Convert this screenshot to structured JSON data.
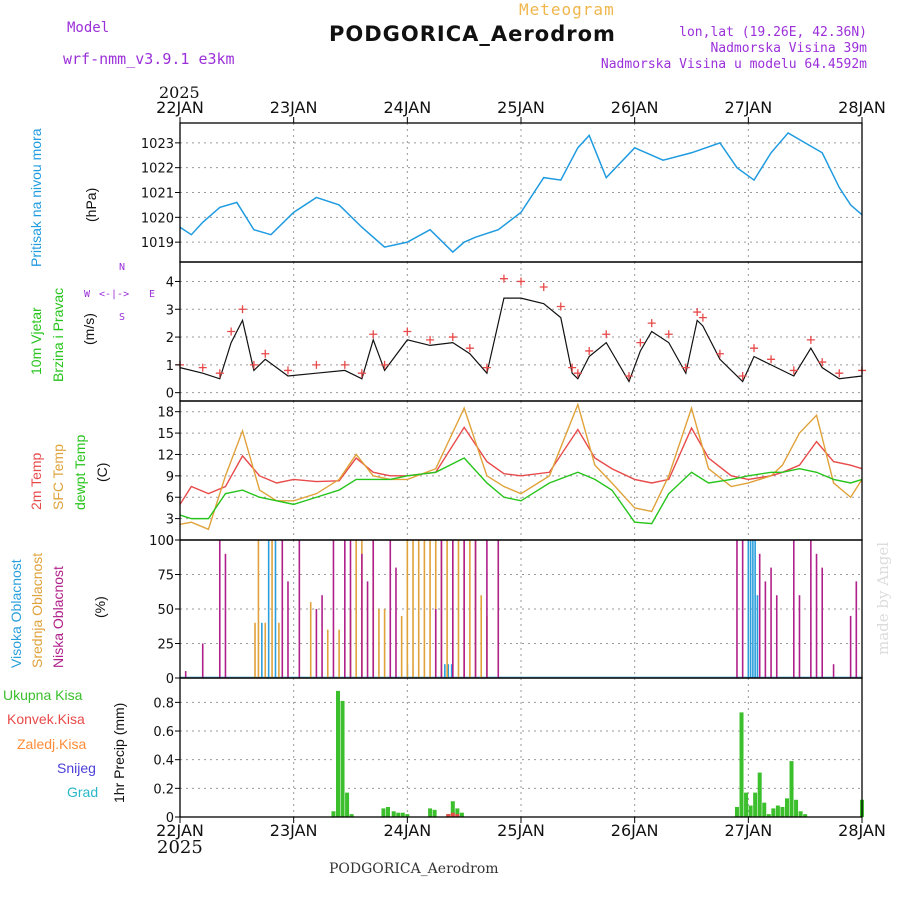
{
  "header": {
    "model_label": "Model",
    "model_name": "wrf-nmm_v3.9.1 e3km",
    "meteogram_label": "Meteogram",
    "title": "PODGORICA_Aerodrom",
    "coords": "lon,lat (19.26E, 42.36N)",
    "elevation": "Nadmorska Visina 39m",
    "model_elevation": "Nadmorska Visina u modelu 64.4592m",
    "year_top": "2025",
    "year_bottom": "2025",
    "footer": "PODGORICA_Aerodrom",
    "watermark": "made by Angel"
  },
  "colors": {
    "pressure": "#1f9be0",
    "wind_speed": "#111111",
    "gust": "#e84a4a",
    "temp2m": "#e84a4a",
    "sfc": "#e0a23a",
    "dewpt": "#27c41c",
    "high_cloud": "#2b9fdc",
    "mid_cloud": "#e0a23a",
    "low_cloud": "#b0208a",
    "total_precip": "#3cbf2c",
    "conv_precip": "#e84a4a",
    "freezing_rain": "#ff8c3a",
    "snow": "#4b3fd9",
    "hail": "#28b8c8",
    "grid": "#9a9a9a"
  },
  "panel_labels": {
    "pressure": [
      "Pritisak na nivou mora"
    ],
    "pressure_unit": "(hPa)",
    "wind": [
      "10m Vjetar",
      "Brzina i Pravac"
    ],
    "wind_unit": "(m/s)",
    "compass": {
      "n": "N",
      "s": "S",
      "w": "W",
      "e": "E",
      "arrows": "<-|->"
    },
    "temp": [
      "2m Temp",
      "SFC Temp",
      "dewpt Temp"
    ],
    "temp_unit": "(C)",
    "cloud": [
      "Visoka Oblacnost",
      "Srednja Oblacnost",
      "Niska Oblacnost"
    ],
    "cloud_unit": "(%)",
    "precip": [
      "Ukupna Kisa",
      "Konvek.Kisa",
      "Zaledj.Kisa",
      "Snijeg",
      "Grad"
    ],
    "precip_unit": "1hr Precip (mm)"
  },
  "chart_data": [
    {
      "type": "line",
      "name": "pressure",
      "title": "Pritisak na nivou mora",
      "ylabel": "(hPa)",
      "categories": [
        "22JAN",
        "23JAN",
        "24JAN",
        "25JAN",
        "26JAN",
        "27JAN",
        "28JAN"
      ],
      "yticks": [
        1019,
        1020,
        1021,
        1022,
        1023
      ],
      "ylim": [
        1018.2,
        1023.8
      ],
      "x": [
        0,
        0.1,
        0.2,
        0.35,
        0.5,
        0.65,
        0.8,
        1.0,
        1.2,
        1.4,
        1.6,
        1.8,
        2.0,
        2.2,
        2.4,
        2.5,
        2.6,
        2.8,
        3.0,
        3.2,
        3.35,
        3.5,
        3.6,
        3.75,
        4.0,
        4.25,
        4.5,
        4.75,
        4.9,
        5.05,
        5.2,
        5.35,
        5.5,
        5.65,
        5.8,
        5.9,
        6.0
      ],
      "values": [
        1019.6,
        1019.3,
        1019.8,
        1020.4,
        1020.6,
        1019.5,
        1019.3,
        1020.2,
        1020.8,
        1020.5,
        1019.6,
        1018.8,
        1019.0,
        1019.5,
        1018.6,
        1019.0,
        1019.2,
        1019.5,
        1020.2,
        1021.6,
        1021.5,
        1022.8,
        1023.3,
        1021.6,
        1022.8,
        1022.3,
        1022.6,
        1023.0,
        1022.0,
        1021.5,
        1022.6,
        1023.4,
        1023.0,
        1022.6,
        1021.2,
        1020.5,
        1020.1
      ]
    },
    {
      "type": "line",
      "name": "wind",
      "title": "10m Vjetar Brzina i Pravac",
      "ylabel": "(m/s)",
      "yticks": [
        0,
        1,
        2,
        3,
        4
      ],
      "ylim": [
        -0.3,
        4.7
      ],
      "series": [
        {
          "name": "speed",
          "x": [
            0,
            0.2,
            0.35,
            0.45,
            0.55,
            0.65,
            0.75,
            0.95,
            1.2,
            1.45,
            1.6,
            1.7,
            1.8,
            2.0,
            2.2,
            2.4,
            2.55,
            2.7,
            2.85,
            3.0,
            3.2,
            3.35,
            3.45,
            3.5,
            3.6,
            3.75,
            3.95,
            4.05,
            4.15,
            4.3,
            4.45,
            4.55,
            4.6,
            4.75,
            4.95,
            5.05,
            5.2,
            5.4,
            5.55,
            5.65,
            5.8,
            6.0
          ],
          "values": [
            0.9,
            0.7,
            0.5,
            1.8,
            2.6,
            0.8,
            1.2,
            0.6,
            0.7,
            0.8,
            0.5,
            1.9,
            0.8,
            1.9,
            1.7,
            1.8,
            1.4,
            0.7,
            3.4,
            3.4,
            3.2,
            2.7,
            0.7,
            0.5,
            1.3,
            1.8,
            0.4,
            1.5,
            2.2,
            1.8,
            0.7,
            2.6,
            2.4,
            1.2,
            0.4,
            1.3,
            1.0,
            0.6,
            1.6,
            0.9,
            0.5,
            0.6
          ]
        },
        {
          "name": "gust",
          "x": [
            0,
            0.2,
            0.35,
            0.45,
            0.55,
            0.65,
            0.75,
            0.95,
            1.2,
            1.45,
            1.6,
            1.7,
            1.8,
            2.0,
            2.2,
            2.4,
            2.55,
            2.7,
            2.85,
            3.0,
            3.2,
            3.35,
            3.45,
            3.5,
            3.6,
            3.75,
            3.95,
            4.05,
            4.15,
            4.3,
            4.45,
            4.55,
            4.6,
            4.75,
            4.95,
            5.05,
            5.2,
            5.4,
            5.55,
            5.65,
            5.8,
            6.0
          ],
          "values": [
            1.0,
            0.9,
            0.7,
            2.2,
            3.0,
            1.0,
            1.4,
            0.8,
            1.0,
            1.0,
            0.7,
            2.1,
            1.0,
            2.2,
            1.9,
            2.0,
            1.6,
            0.9,
            4.1,
            4.0,
            3.8,
            3.1,
            0.9,
            0.7,
            1.5,
            2.1,
            0.6,
            1.8,
            2.5,
            2.1,
            0.9,
            2.9,
            2.7,
            1.4,
            0.6,
            1.6,
            1.2,
            0.8,
            1.9,
            1.1,
            0.7,
            0.8
          ]
        }
      ]
    },
    {
      "type": "line",
      "name": "temperature",
      "title": "2m Temp / SFC Temp / dewpt Temp",
      "ylabel": "(C)",
      "yticks": [
        0,
        3,
        6,
        9,
        12,
        15,
        18
      ],
      "ylim": [
        0,
        19.5
      ],
      "series": [
        {
          "name": "2m Temp",
          "x": [
            0,
            0.1,
            0.25,
            0.4,
            0.55,
            0.7,
            0.85,
            1.0,
            1.2,
            1.4,
            1.55,
            1.7,
            1.85,
            2.0,
            2.25,
            2.5,
            2.7,
            2.85,
            3.0,
            3.25,
            3.5,
            3.65,
            3.8,
            4.0,
            4.15,
            4.3,
            4.5,
            4.65,
            4.85,
            5.0,
            5.2,
            5.3,
            5.45,
            5.6,
            5.75,
            5.9,
            6.0
          ],
          "values": [
            5.0,
            7.5,
            6.5,
            7.5,
            11.8,
            9.0,
            8.0,
            8.5,
            8.2,
            8.3,
            11.5,
            9.5,
            9.0,
            9.0,
            9.5,
            15.8,
            11.0,
            9.3,
            9.0,
            9.5,
            15.5,
            11.5,
            10.0,
            8.5,
            8.0,
            8.5,
            15.7,
            11.5,
            9.0,
            8.5,
            9.0,
            9.5,
            10.5,
            13.8,
            11.0,
            10.5,
            10.0
          ]
        },
        {
          "name": "SFC Temp",
          "x": [
            0,
            0.1,
            0.25,
            0.4,
            0.55,
            0.7,
            0.85,
            1.0,
            1.2,
            1.4,
            1.55,
            1.7,
            1.85,
            2.0,
            2.25,
            2.5,
            2.7,
            2.85,
            3.0,
            3.25,
            3.5,
            3.65,
            3.8,
            4.0,
            4.15,
            4.3,
            4.5,
            4.65,
            4.85,
            5.0,
            5.2,
            5.3,
            5.45,
            5.6,
            5.75,
            5.9,
            6.0
          ],
          "values": [
            2.2,
            2.5,
            1.5,
            9.0,
            15.3,
            7.0,
            5.5,
            5.5,
            6.5,
            8.5,
            12.0,
            9.0,
            8.5,
            8.5,
            10.0,
            18.5,
            9.0,
            7.5,
            6.5,
            9.0,
            19.0,
            10.5,
            8.0,
            4.5,
            4.0,
            9.0,
            18.5,
            10.0,
            7.5,
            8.0,
            9.0,
            10.5,
            15.0,
            17.5,
            8.0,
            6.0,
            8.5
          ]
        },
        {
          "name": "dewpt Temp",
          "x": [
            0,
            0.1,
            0.25,
            0.4,
            0.55,
            0.7,
            0.85,
            1.0,
            1.2,
            1.4,
            1.55,
            1.7,
            1.85,
            2.0,
            2.25,
            2.5,
            2.7,
            2.85,
            3.0,
            3.25,
            3.5,
            3.65,
            3.8,
            4.0,
            4.15,
            4.3,
            4.5,
            4.65,
            4.85,
            5.0,
            5.2,
            5.3,
            5.45,
            5.6,
            5.75,
            5.9,
            6.0
          ],
          "values": [
            3.5,
            3.0,
            3.0,
            6.5,
            7.0,
            6.0,
            5.5,
            5.0,
            6.0,
            7.0,
            8.5,
            8.5,
            8.5,
            9.0,
            9.5,
            11.5,
            8.0,
            6.0,
            5.5,
            8.0,
            9.5,
            8.5,
            7.0,
            2.5,
            2.3,
            6.5,
            9.5,
            8.0,
            8.5,
            9.0,
            9.5,
            9.5,
            10.0,
            9.5,
            8.5,
            8.0,
            8.5
          ]
        }
      ]
    },
    {
      "type": "bar",
      "name": "cloud",
      "title": "Visoka / Srednja / Niska Oblacnost",
      "ylabel": "(%)",
      "yticks": [
        0,
        25,
        50,
        75,
        100
      ],
      "ylim": [
        0,
        100
      ],
      "series": [
        {
          "name": "Visoka Oblacnost",
          "x": [
            0.72,
            0.78,
            0.84,
            2.0,
            2.33,
            2.36,
            2.39,
            5.0,
            5.02,
            5.04,
            5.06,
            5.08
          ],
          "values": [
            40,
            100,
            100,
            10,
            10,
            10,
            10,
            100,
            100,
            100,
            100,
            60
          ]
        },
        {
          "name": "Srednja Oblacnost",
          "x": [
            0.66,
            0.69,
            0.75,
            0.81,
            0.87,
            1.15,
            1.3,
            1.4,
            1.5,
            1.55,
            1.6,
            1.7,
            1.75,
            1.8,
            1.95,
            2.0,
            2.05,
            2.1,
            2.15,
            2.2,
            2.25,
            2.3,
            2.35,
            2.4,
            2.45,
            2.5,
            2.55,
            2.6,
            2.65,
            2.7
          ],
          "values": [
            40,
            100,
            40,
            100,
            40,
            55,
            35,
            35,
            50,
            100,
            100,
            100,
            50,
            50,
            45,
            100,
            100,
            100,
            100,
            100,
            100,
            100,
            100,
            100,
            100,
            100,
            100,
            100,
            60,
            45
          ]
        },
        {
          "name": "Niska Oblacnost",
          "x": [
            0.05,
            0.2,
            0.35,
            0.4,
            0.9,
            0.95,
            1.05,
            1.2,
            1.25,
            1.35,
            1.45,
            1.5,
            1.6,
            1.65,
            1.7,
            1.85,
            1.9,
            2.25,
            2.3,
            2.4,
            2.5,
            2.6,
            2.7,
            2.8,
            4.9,
            4.95,
            5.1,
            5.15,
            5.2,
            5.25,
            5.4,
            5.45,
            5.55,
            5.6,
            5.65,
            5.75,
            5.9,
            5.95
          ],
          "values": [
            5,
            25,
            100,
            90,
            100,
            70,
            100,
            50,
            60,
            100,
            100,
            100,
            90,
            70,
            100,
            100,
            80,
            50,
            100,
            100,
            100,
            100,
            100,
            100,
            100,
            100,
            90,
            70,
            80,
            60,
            100,
            60,
            100,
            90,
            80,
            10,
            45,
            70
          ]
        }
      ]
    },
    {
      "type": "bar",
      "name": "precip",
      "title": "1hr Precip",
      "ylabel": "(mm)",
      "categories": [
        "22JAN",
        "23JAN",
        "24JAN",
        "25JAN",
        "26JAN",
        "27JAN",
        "28JAN"
      ],
      "yticks": [
        0,
        0.2,
        0.4,
        0.6,
        0.8
      ],
      "ylim": [
        0,
        0.97
      ],
      "series": [
        {
          "name": "Ukupna Kisa",
          "x": [
            1.35,
            1.39,
            1.43,
            1.47,
            1.51,
            1.55,
            1.59,
            1.63,
            1.67,
            1.71,
            1.75,
            1.79,
            1.83,
            1.88,
            1.92,
            1.96,
            2.0,
            2.04,
            2.08,
            2.12,
            2.16,
            2.2,
            2.24,
            2.28,
            2.32,
            2.36,
            2.4,
            2.44,
            2.48,
            2.52,
            2.56,
            4.9,
            4.94,
            4.98,
            5.02,
            5.06,
            5.1,
            5.14,
            5.18,
            5.22,
            5.26,
            5.3,
            5.34,
            5.38,
            5.42,
            5.46,
            5.5,
            5.54,
            6.0
          ],
          "values": [
            0.04,
            0.88,
            0.81,
            0.17,
            0.02,
            0.0,
            0.0,
            0.0,
            0.0,
            0.0,
            0.0,
            0.06,
            0.07,
            0.04,
            0.03,
            0.03,
            0.02,
            0.0,
            0.0,
            0.0,
            0.0,
            0.06,
            0.05,
            0.0,
            0.0,
            0.02,
            0.11,
            0.06,
            0.03,
            0.0,
            0.0,
            0.07,
            0.73,
            0.17,
            0.08,
            0.17,
            0.31,
            0.1,
            0.02,
            0.06,
            0.08,
            0.07,
            0.13,
            0.39,
            0.12,
            0.04,
            0.02,
            0.0,
            0.12
          ]
        },
        {
          "name": "Konvek.Kisa",
          "x": [
            2.36,
            2.4,
            2.44
          ],
          "values": [
            0.02,
            0.03,
            0.02
          ]
        }
      ]
    }
  ]
}
